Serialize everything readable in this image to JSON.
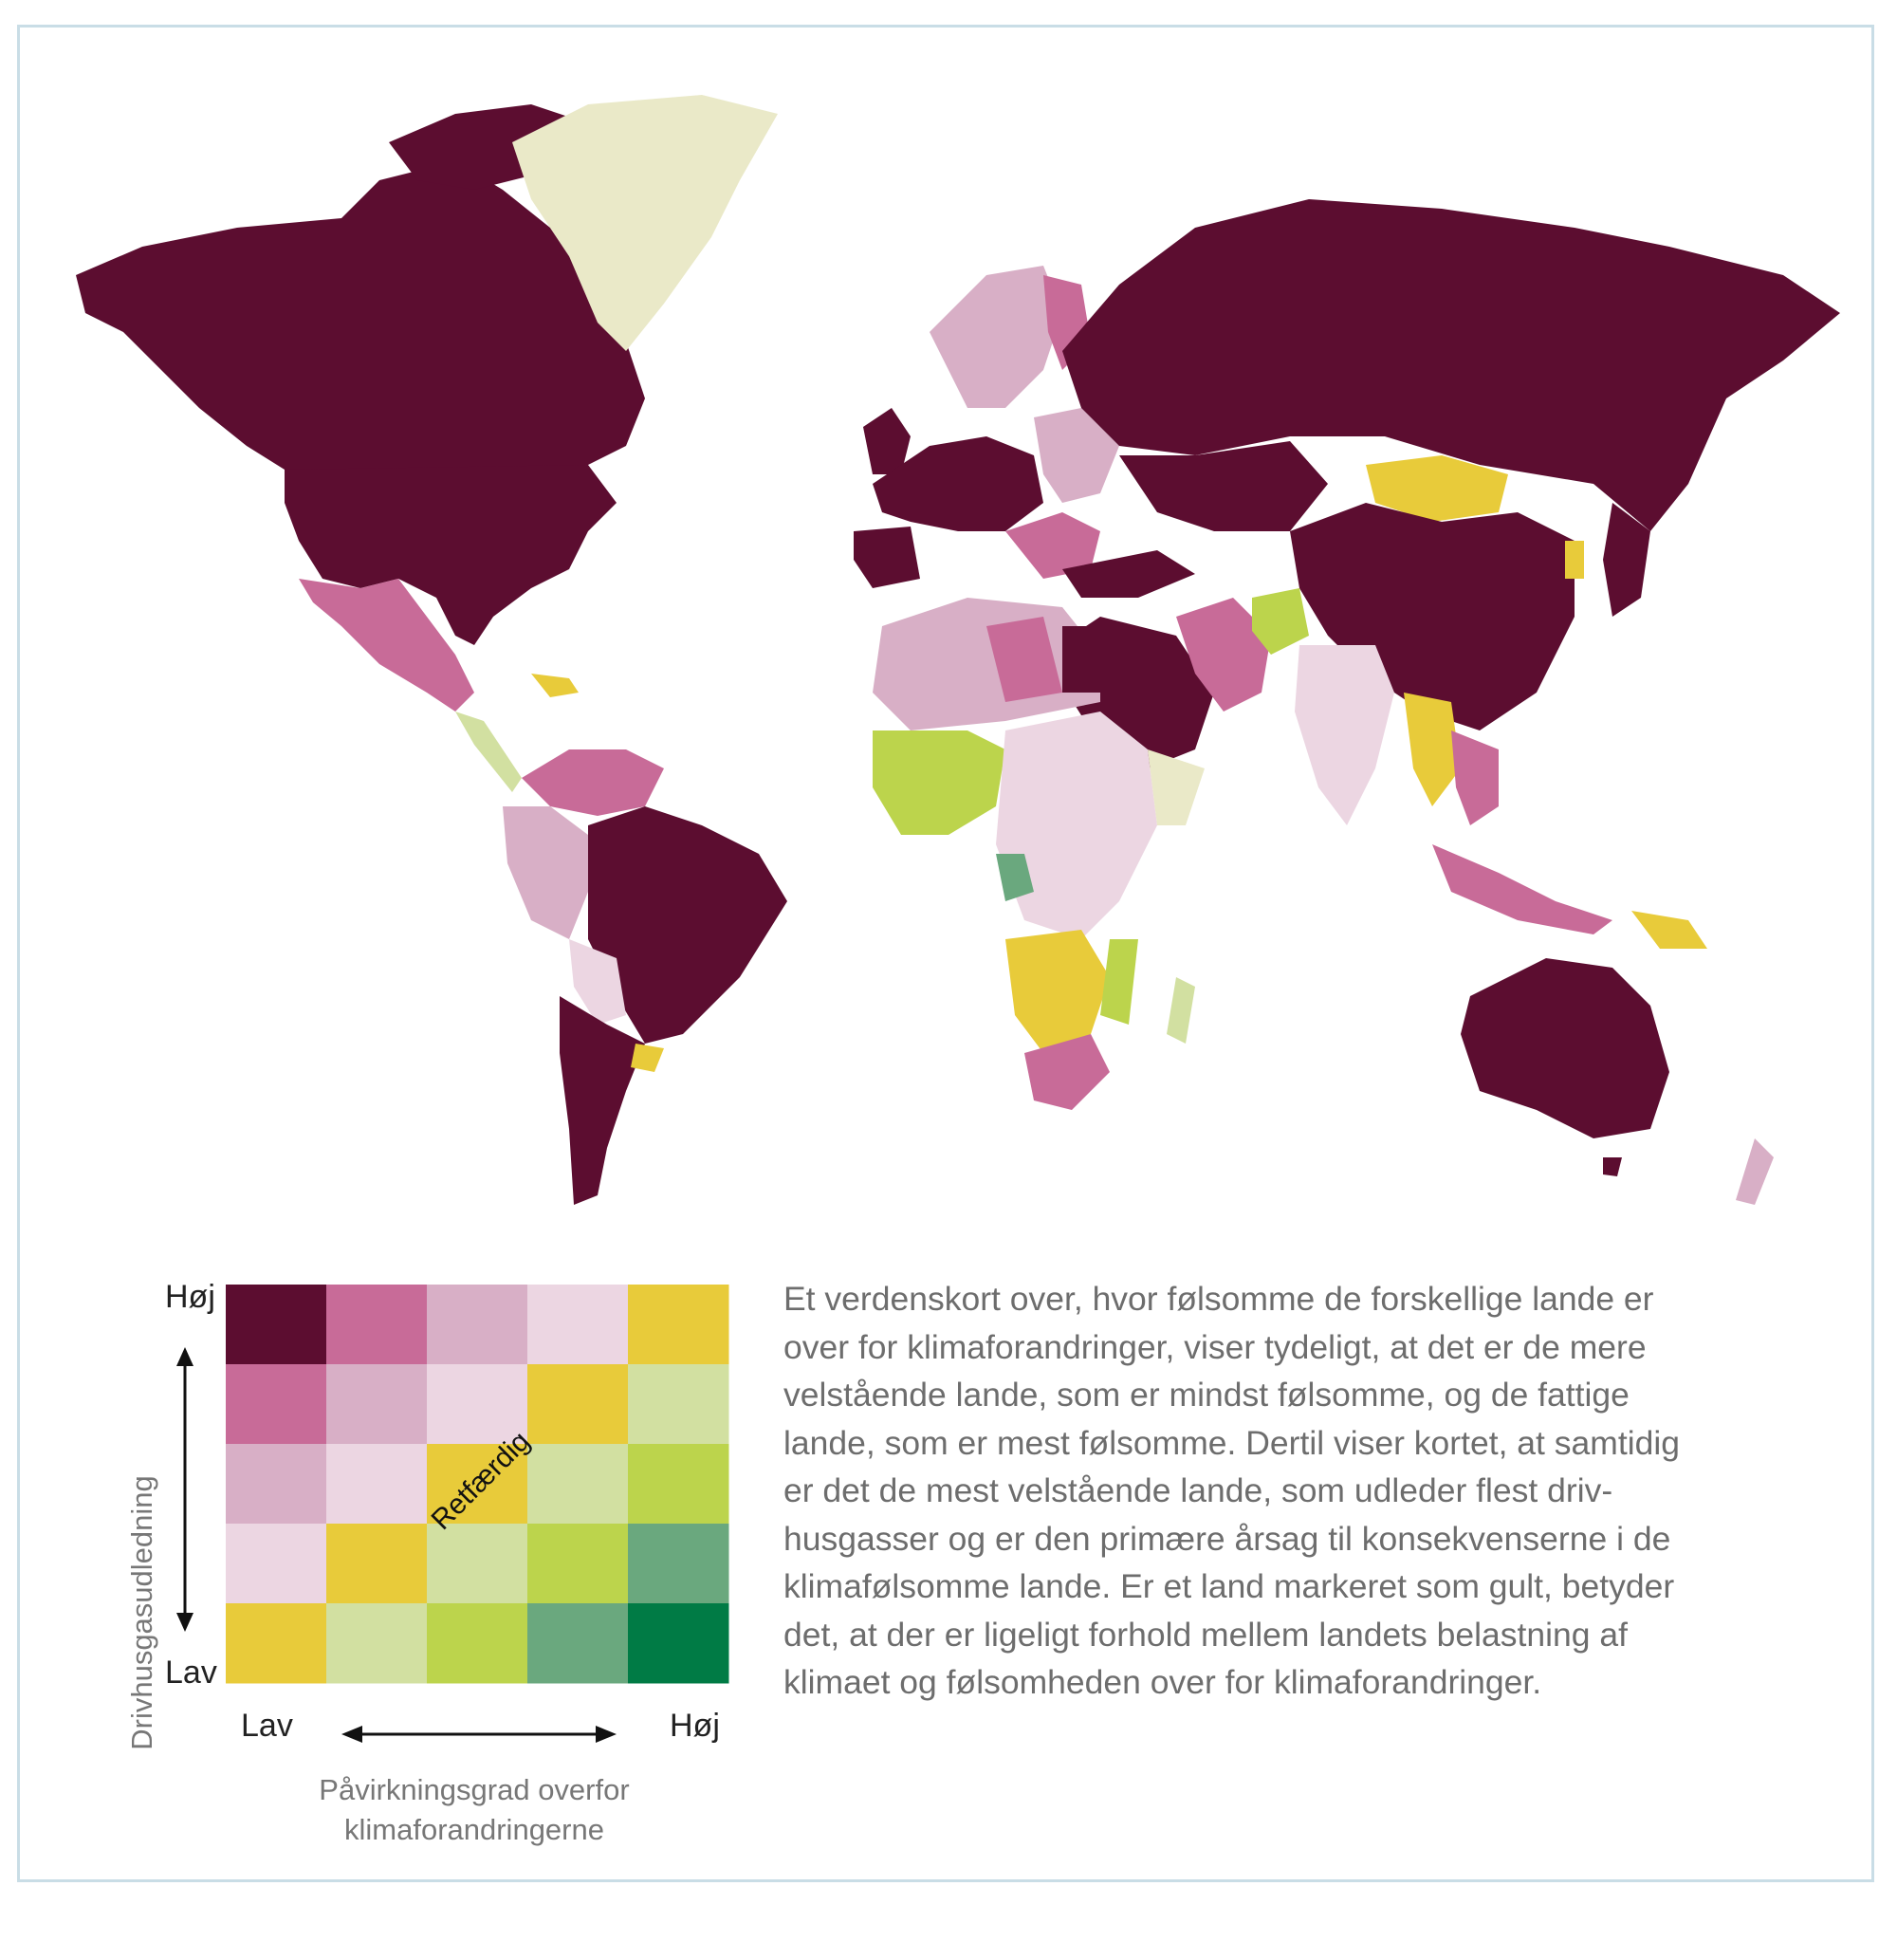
{
  "legend": {
    "y_high": "Høj",
    "y_low": "Lav",
    "x_low": "Lav",
    "x_high": "Høj",
    "y_axis_title": "Drivhusgasudledning",
    "x_axis_title_line1": "Påvirkningsgrad overfor",
    "x_axis_title_line2": "klimaforandringerne",
    "diagonal_label": "Retfærdig",
    "grid_colors": [
      [
        "#5c0d30",
        "#c86b98",
        "#d8afc6",
        "#ecd6e2",
        "#e8cb3a"
      ],
      [
        "#c86b98",
        "#d8afc6",
        "#ecd6e2",
        "#e8cb3a",
        "#d2e0a1"
      ],
      [
        "#d8afc6",
        "#ecd6e2",
        "#e8cb3a",
        "#d2e0a1",
        "#bcd44c"
      ],
      [
        "#ecd6e2",
        "#e8cb3a",
        "#d2e0a1",
        "#bcd44c",
        "#6aa87e"
      ],
      [
        "#e8cb3a",
        "#d2e0a1",
        "#bcd44c",
        "#6aa87e",
        "#007b45"
      ]
    ]
  },
  "caption": "Et verdenskort over, hvor følsomme de forskellige lande er over for klimaforandringer, viser tydeligt, at det er de mere velstående lande, som er mindst følsomme, og de fattige lande, som er mest følsomme. Dertil viser kortet, at samtidig er det de mest velstående lande, som udleder flest driv-husgasser og er den primære årsag til konsekvenserne i de klimafølsomme lande. Er et land markeret som gult, betyder det, at der er ligeligt forhold mellem landets belastning af klimaet og følsomheden over for klimaforandringer.",
  "colors": {
    "dark": "#5c0d30",
    "pink": "#c86b98",
    "mauve": "#d8afc6",
    "light_pink": "#ecd6e2",
    "yellow": "#e8cb3a",
    "pale_green": "#d2e0a1",
    "lime": "#bcd44c",
    "teal": "#6aa87e",
    "green": "#007b45",
    "greenland": "#eae9c8",
    "frame": "#c9dde6"
  }
}
